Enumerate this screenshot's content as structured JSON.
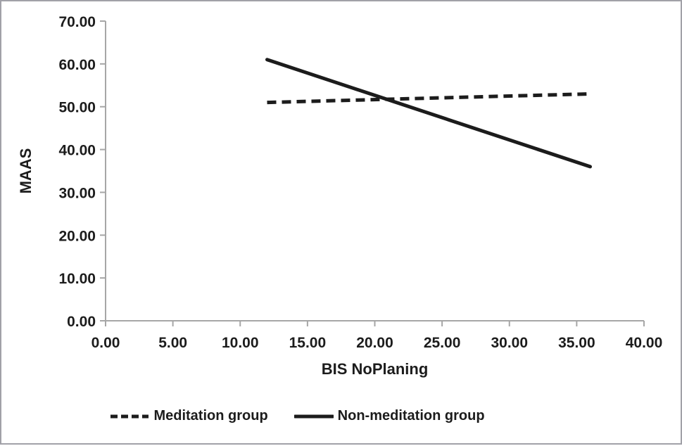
{
  "window": {
    "background": "#ffffff",
    "border_color": "#a1a1a8"
  },
  "chart_data": {
    "type": "line",
    "title": "",
    "xlabel": "BIS NoPlaning",
    "ylabel": "MAAS",
    "xlim": [
      0,
      40
    ],
    "ylim": [
      0,
      70
    ],
    "grid": false,
    "legend_position": "bottom",
    "axis_color": "#a6a6a6",
    "line_color": "#1c1c1c",
    "text_color": "#1c1c1c",
    "x_ticks": [
      {
        "v": 0,
        "label": "0.00"
      },
      {
        "v": 5,
        "label": "5.00"
      },
      {
        "v": 10,
        "label": "10.00"
      },
      {
        "v": 15,
        "label": "15.00"
      },
      {
        "v": 20,
        "label": "20.00"
      },
      {
        "v": 25,
        "label": "25.00"
      },
      {
        "v": 30,
        "label": "30.00"
      },
      {
        "v": 35,
        "label": "35.00"
      },
      {
        "v": 40,
        "label": "40.00"
      }
    ],
    "y_ticks": [
      {
        "v": 0,
        "label": "0.00"
      },
      {
        "v": 10,
        "label": "10.00"
      },
      {
        "v": 20,
        "label": "20.00"
      },
      {
        "v": 30,
        "label": "30.00"
      },
      {
        "v": 40,
        "label": "40.00"
      },
      {
        "v": 50,
        "label": "50.00"
      },
      {
        "v": 60,
        "label": "60.00"
      },
      {
        "v": 70,
        "label": "70.00"
      }
    ],
    "series": [
      {
        "name": "Meditation group",
        "line_style": "dashed",
        "x": [
          12,
          36
        ],
        "y": [
          51,
          53
        ]
      },
      {
        "name": "Non-meditation group",
        "line_style": "solid",
        "x": [
          12,
          36
        ],
        "y": [
          61,
          36
        ]
      }
    ]
  }
}
